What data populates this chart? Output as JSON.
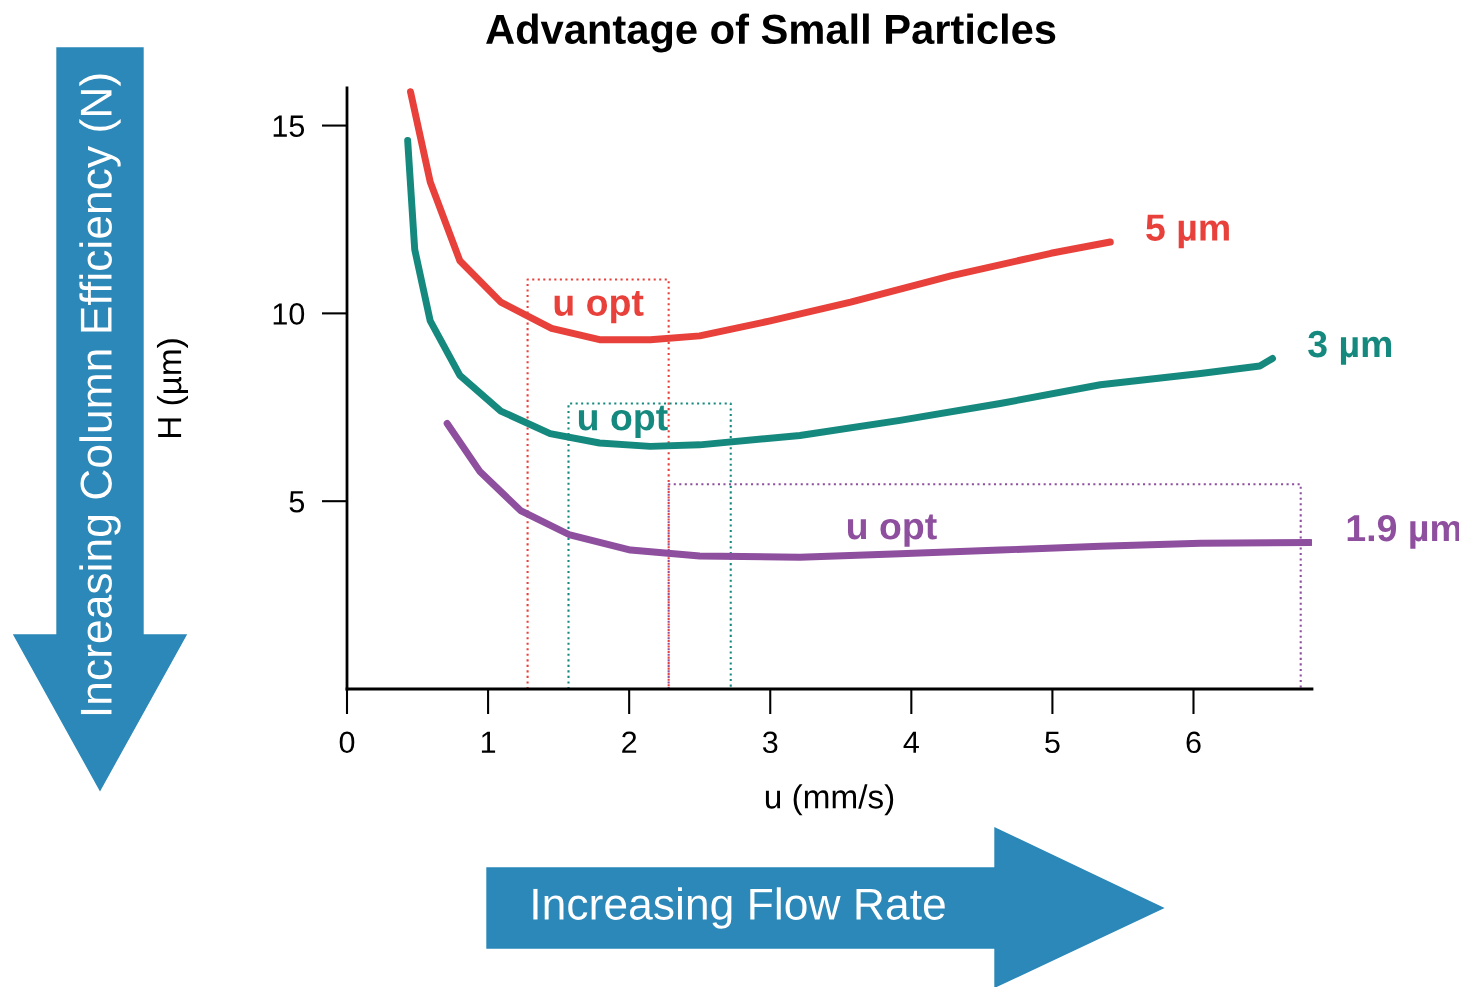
{
  "chart_data": {
    "type": "line",
    "title": "Advantage of Small Particles",
    "xlabel": "u (mm/s)",
    "ylabel": "H (µm)",
    "xlim": [
      0,
      6.84
    ],
    "ylim": [
      0,
      16
    ],
    "xticks": [
      0,
      1,
      2,
      3,
      4,
      5,
      6
    ],
    "yticks": [
      5,
      10,
      15
    ],
    "grid": false,
    "legend": false,
    "marker": "none",
    "series": [
      {
        "name": "5 µm",
        "color": "#e8403a",
        "line_style": "solid",
        "x": [
          0.45,
          0.59,
          0.8,
          1.09,
          1.45,
          1.79,
          2.15,
          2.5,
          3.0,
          3.57,
          4.28,
          4.99,
          5.41
        ],
        "values": [
          15.9,
          13.5,
          11.4,
          10.3,
          9.6,
          9.3,
          9.3,
          9.4,
          9.8,
          10.3,
          11.0,
          11.6,
          11.9
        ]
      },
      {
        "name": "3 µm",
        "color": "#16897e",
        "line_style": "solid",
        "x": [
          0.43,
          0.48,
          0.59,
          0.8,
          1.09,
          1.44,
          1.79,
          2.15,
          2.5,
          3.21,
          3.92,
          4.63,
          5.34,
          6.05,
          6.47,
          6.56
        ],
        "values": [
          14.6,
          11.7,
          9.8,
          8.35,
          7.4,
          6.8,
          6.55,
          6.46,
          6.5,
          6.75,
          7.15,
          7.6,
          8.1,
          8.4,
          8.6,
          8.8
        ]
      },
      {
        "name": "1.9 µm",
        "color": "#8e4f9e",
        "line_style": "solid",
        "x": [
          0.71,
          0.94,
          1.23,
          1.58,
          2.01,
          2.5,
          3.21,
          3.92,
          4.63,
          5.34,
          6.05,
          6.83
        ],
        "values": [
          7.07,
          5.8,
          4.75,
          4.1,
          3.7,
          3.54,
          3.51,
          3.6,
          3.7,
          3.8,
          3.88,
          3.9
        ]
      },
      {
        "color": "#e8403a",
        "line_style": "dotted",
        "x": [
          1.28,
          1.28,
          2.28,
          2.28
        ],
        "values": [
          0,
          10.9,
          10.9,
          0
        ]
      },
      {
        "color": "#16897e",
        "line_style": "dotted",
        "x": [
          1.57,
          1.57,
          2.72,
          2.72
        ],
        "values": [
          0,
          7.6,
          7.6,
          0
        ]
      },
      {
        "color": "#8e4f9e",
        "line_style": "dotted",
        "x": [
          2.28,
          2.28,
          6.76,
          6.76
        ],
        "values": [
          0,
          5.45,
          5.45,
          0
        ]
      }
    ],
    "annotations": [
      "u opt",
      "u opt",
      "u opt",
      "Increasing Column Efficiency (N)",
      "Increasing Flow Rate"
    ]
  }
}
